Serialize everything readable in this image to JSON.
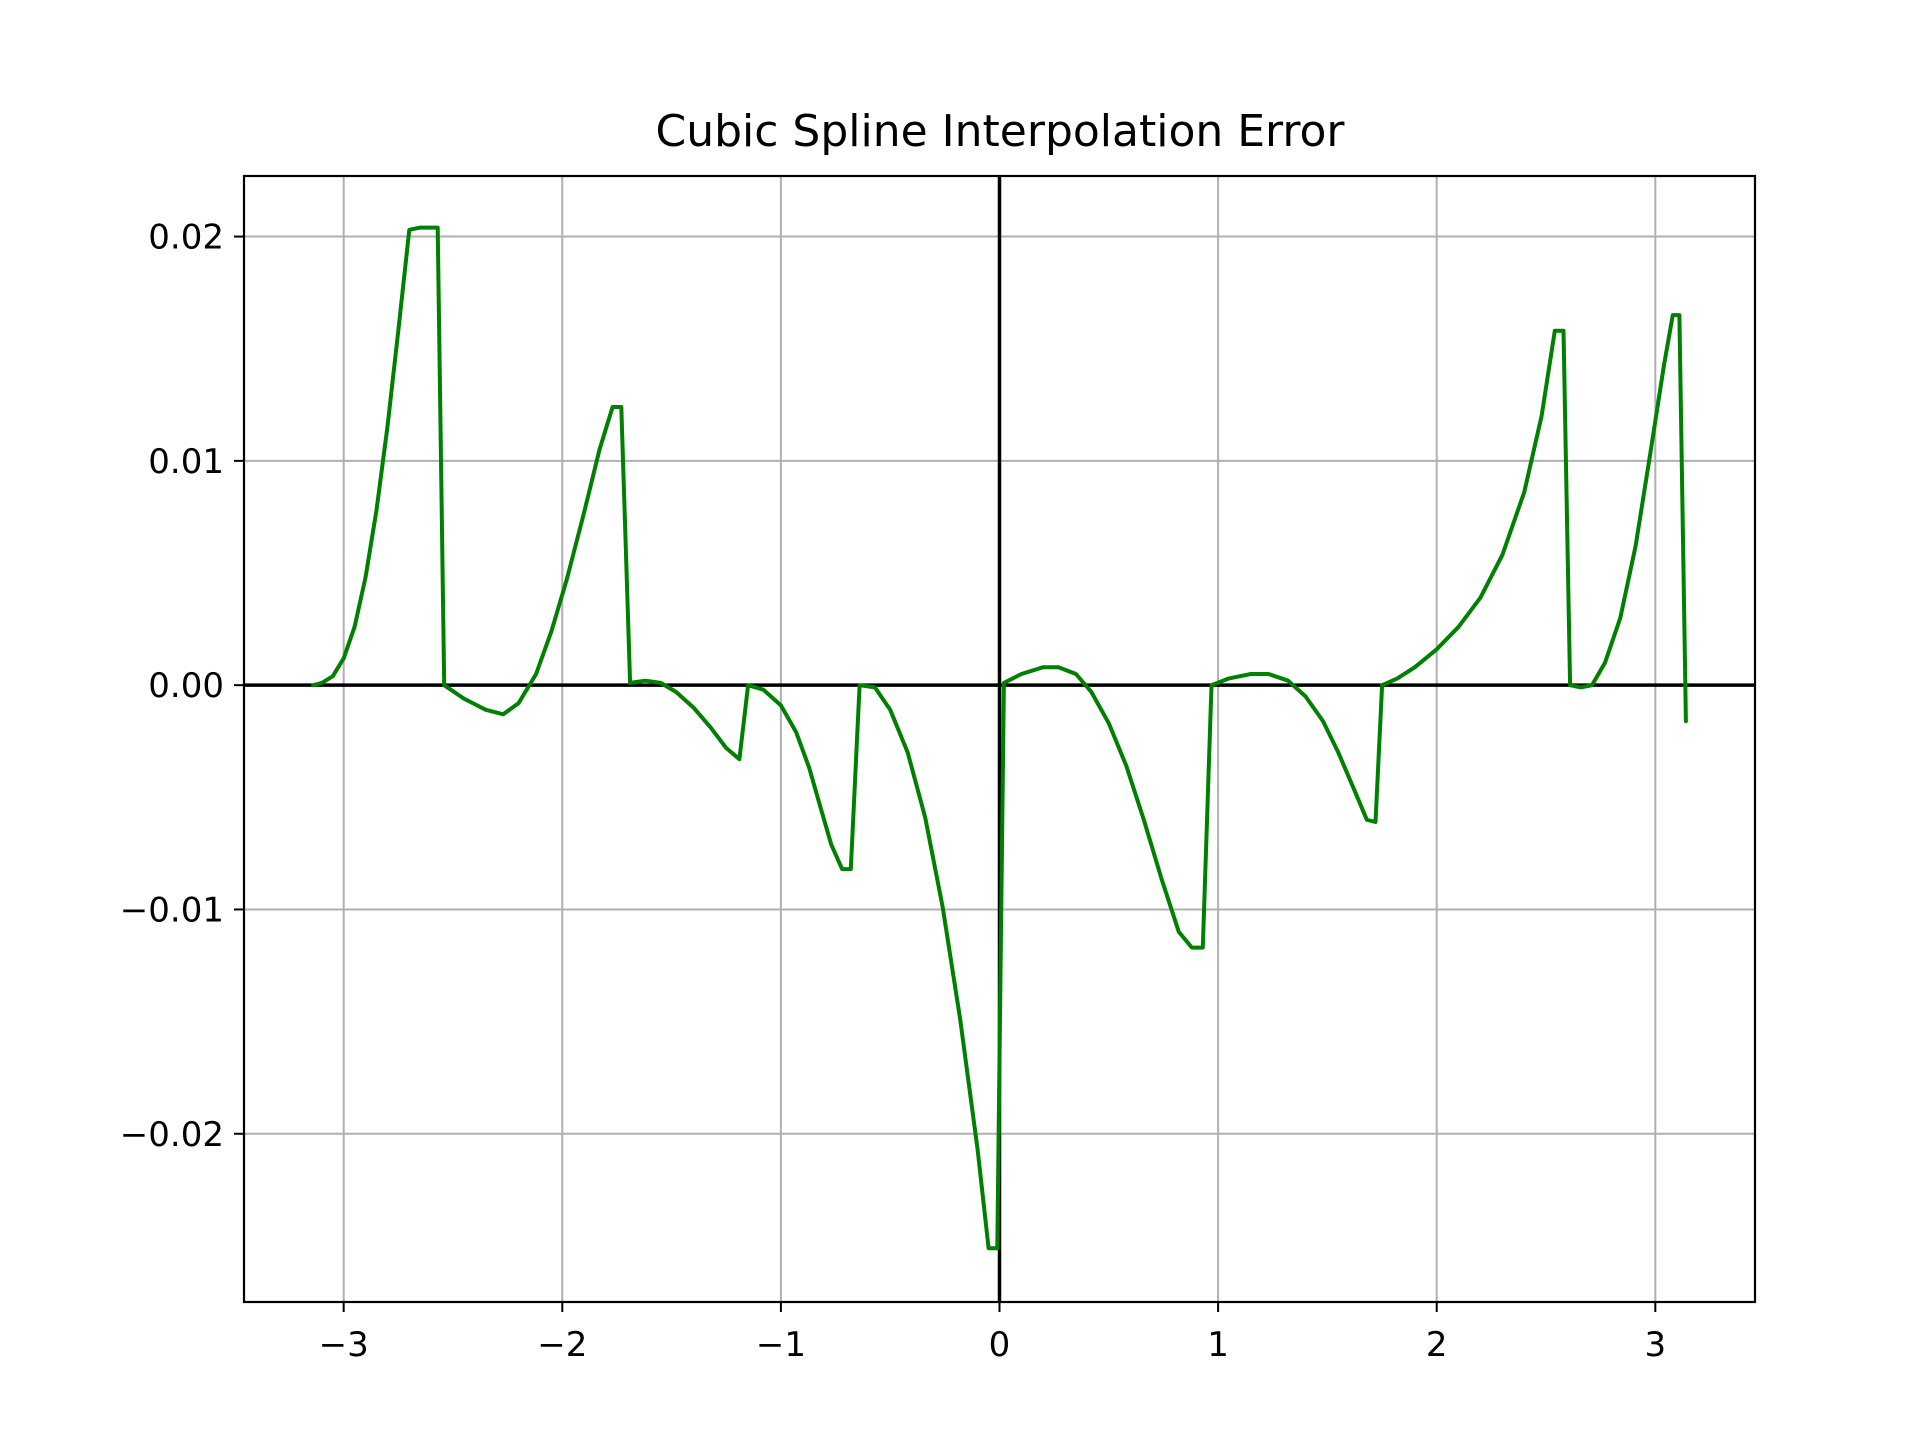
{
  "chart_data": {
    "type": "line",
    "title": "Cubic Spline Interpolation Error",
    "xlabel": "",
    "ylabel": "",
    "xlim": [
      -3.456,
      3.456
    ],
    "ylim": [
      -0.0275,
      0.0227
    ],
    "grid": true,
    "legend": "none",
    "x_ticks": [
      {
        "value": -3,
        "label": "−3"
      },
      {
        "value": -2,
        "label": "−2"
      },
      {
        "value": -1,
        "label": "−1"
      },
      {
        "value": 0,
        "label": "0"
      },
      {
        "value": 1,
        "label": "1"
      },
      {
        "value": 2,
        "label": "2"
      },
      {
        "value": 3,
        "label": "3"
      }
    ],
    "y_ticks": [
      {
        "value": -0.02,
        "label": "−0.02"
      },
      {
        "value": -0.01,
        "label": "−0.01"
      },
      {
        "value": 0.0,
        "label": "0.00"
      },
      {
        "value": 0.01,
        "label": "0.01"
      },
      {
        "value": 0.02,
        "label": "0.02"
      }
    ],
    "reference_lines": {
      "x": 0,
      "y": 0,
      "color": "#000000"
    },
    "series": [
      {
        "color": "#008000",
        "x": [
          -3.14,
          -3.1,
          -3.05,
          -3.0,
          -2.95,
          -2.9,
          -2.85,
          -2.8,
          -2.75,
          -2.7,
          -2.65,
          -2.6,
          -2.57,
          -2.54,
          -2.45,
          -2.35,
          -2.27,
          -2.2,
          -2.12,
          -2.05,
          -1.98,
          -1.9,
          -1.83,
          -1.77,
          -1.73,
          -1.69,
          -1.62,
          -1.55,
          -1.48,
          -1.4,
          -1.32,
          -1.25,
          -1.19,
          -1.15,
          -1.08,
          -1.0,
          -0.93,
          -0.87,
          -0.82,
          -0.77,
          -0.72,
          -0.68,
          -0.64,
          -0.57,
          -0.5,
          -0.42,
          -0.34,
          -0.26,
          -0.18,
          -0.1,
          -0.05,
          -0.01,
          0.02,
          0.1,
          0.2,
          0.27,
          0.35,
          0.42,
          0.5,
          0.58,
          0.66,
          0.74,
          0.82,
          0.88,
          0.93,
          0.97,
          1.05,
          1.15,
          1.23,
          1.32,
          1.4,
          1.48,
          1.55,
          1.62,
          1.68,
          1.72,
          1.75,
          1.82,
          1.9,
          2.0,
          2.1,
          2.2,
          2.3,
          2.4,
          2.48,
          2.54,
          2.58,
          2.61,
          2.66,
          2.71,
          2.77,
          2.84,
          2.91,
          2.98,
          3.04,
          3.08,
          3.11,
          3.14
        ],
        "y": [
          0.0,
          0.0001,
          0.0004,
          0.0012,
          0.0026,
          0.0048,
          0.0078,
          0.0115,
          0.0158,
          0.0203,
          0.0204,
          0.0204,
          0.0204,
          0.0,
          -0.0006,
          -0.0011,
          -0.0013,
          -0.0008,
          0.0005,
          0.0024,
          0.0047,
          0.0077,
          0.0105,
          0.0124,
          0.0124,
          0.0001,
          0.0002,
          0.0001,
          -0.0003,
          -0.001,
          -0.0019,
          -0.0028,
          -0.0033,
          0.0,
          -0.0002,
          -0.0009,
          -0.0021,
          -0.0037,
          -0.0054,
          -0.0071,
          -0.0082,
          -0.0082,
          0.0,
          -0.0001,
          -0.0011,
          -0.003,
          -0.0059,
          -0.0099,
          -0.0149,
          -0.0207,
          -0.0251,
          -0.0251,
          0.0001,
          0.0005,
          0.0008,
          0.0008,
          0.0005,
          -0.0003,
          -0.0017,
          -0.0036,
          -0.006,
          -0.0086,
          -0.011,
          -0.0117,
          -0.0117,
          0.0,
          0.0003,
          0.0005,
          0.0005,
          0.0002,
          -0.0005,
          -0.0016,
          -0.003,
          -0.0046,
          -0.006,
          -0.0061,
          0.0,
          0.0003,
          0.0008,
          0.0016,
          0.0026,
          0.0039,
          0.0058,
          0.0086,
          0.012,
          0.0158,
          0.0158,
          0.0,
          -0.0001,
          0.0,
          0.001,
          0.003,
          0.0062,
          0.0105,
          0.0143,
          0.0165,
          0.0165,
          -0.0016
        ]
      }
    ]
  }
}
